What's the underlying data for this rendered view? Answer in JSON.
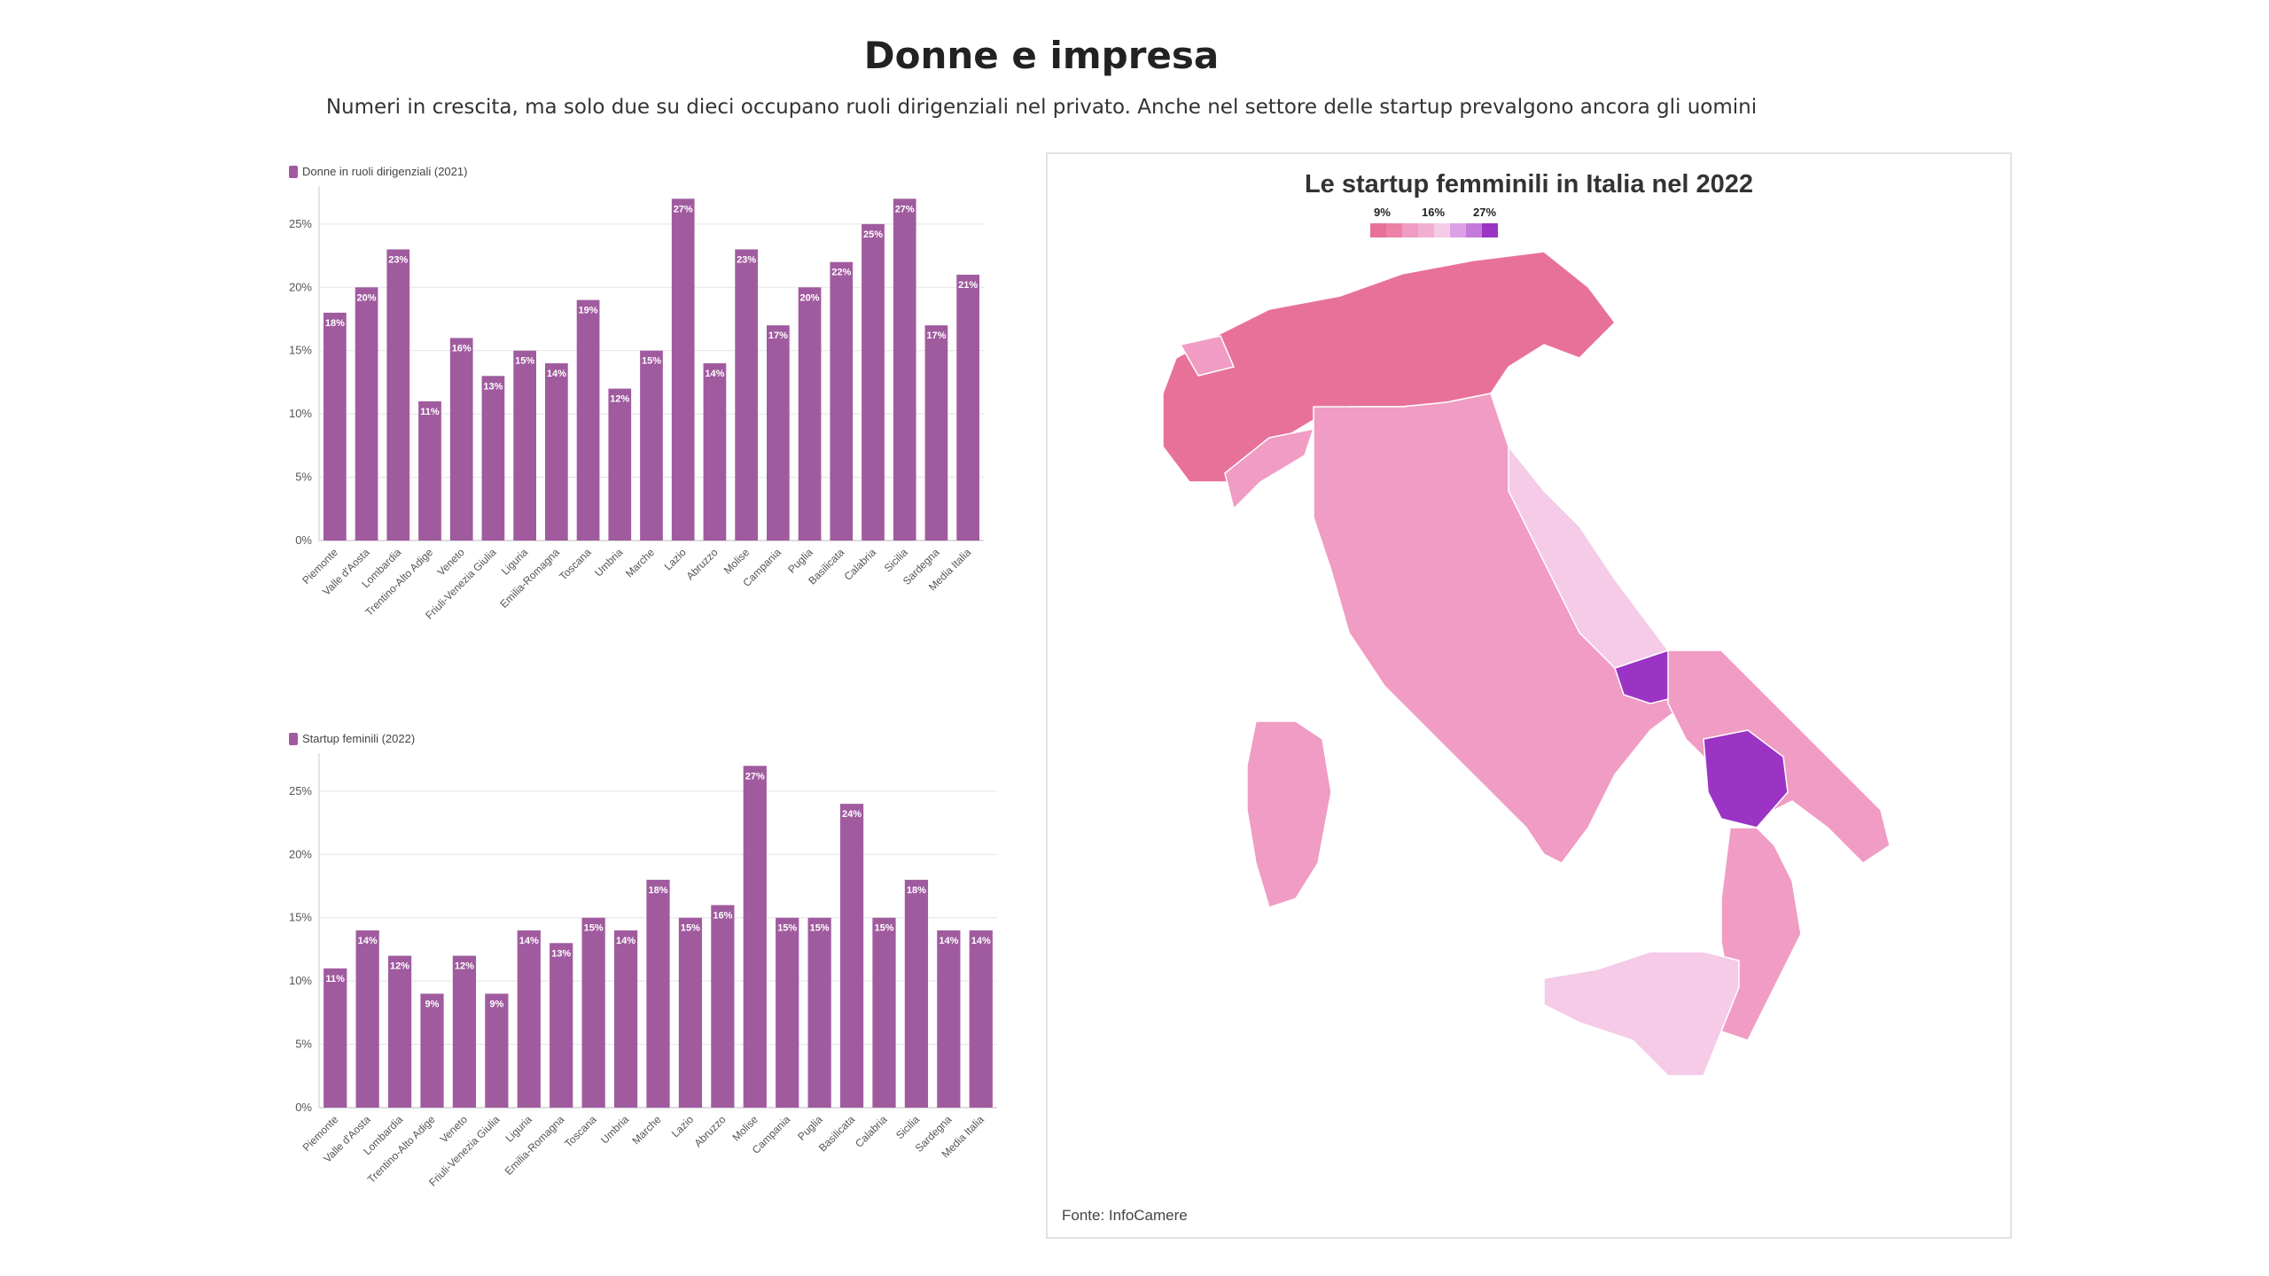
{
  "header": {
    "title": "Donne e impresa",
    "subtitle": "Numeri in crescita, ma solo due su dieci occupano ruoli dirigenziali nel privato. Anche nel settore delle startup prevalgono ancora gli uomini"
  },
  "colors": {
    "bar": "#a05b9f",
    "map_low": "#e8719a",
    "map_mid": "#f09cc4",
    "map_light": "#f5cbe8",
    "map_high": "#9b34c4"
  },
  "chart_data": [
    {
      "type": "bar",
      "legend": "Donne in ruoli dirigenziali (2021)",
      "categories": [
        "Piemonte",
        "Valle d'Aosta",
        "Lombardia",
        "Trentino-Alto Adige",
        "Veneto",
        "Friuli-Venezia Giulia",
        "Liguria",
        "Emilia-Romagna",
        "Toscana",
        "Umbria",
        "Marche",
        "Lazio",
        "Abruzzo",
        "Molise",
        "Campania",
        "Puglia",
        "Basilicata",
        "Calabria",
        "Sicilia",
        "Sardegna",
        "Media Italia"
      ],
      "values": [
        18,
        20,
        23,
        11,
        16,
        13,
        15,
        14,
        19,
        12,
        15,
        27,
        14,
        23,
        17,
        20,
        22,
        25,
        27,
        17,
        21
      ],
      "yticks": [
        "0%",
        "5%",
        "10%",
        "15%",
        "20%",
        "25%"
      ],
      "ylim": [
        0,
        28
      ],
      "grid": true
    },
    {
      "type": "bar",
      "legend": "Startup feminili (2022)",
      "categories": [
        "Piemonte",
        "Valle d'Aosta",
        "Lombardia",
        "Trentino-Alto Adige",
        "Veneto",
        "Friuli-Venezia Giulia",
        "Liguria",
        "Emilia-Romagna",
        "Toscana",
        "Umbria",
        "Marche",
        "Lazio",
        "Abruzzo",
        "Molise",
        "Campania",
        "Puglia",
        "Basilicata",
        "Calabria",
        "Sicilia",
        "Sardegna",
        "Media Italia"
      ],
      "values": [
        11,
        14,
        12,
        9,
        12,
        9,
        14,
        13,
        15,
        14,
        18,
        15,
        16,
        27,
        15,
        15,
        24,
        15,
        18,
        14,
        14
      ],
      "yticks": [
        "0%",
        "5%",
        "10%",
        "15%",
        "20%",
        "25%"
      ],
      "ylim": [
        0,
        28
      ],
      "grid": true
    }
  ],
  "map": {
    "title": "Le startup femminili in Italia nel 2022",
    "scale_labels": [
      "9%",
      "16%",
      "27%"
    ],
    "source": "Fonte: InfoCamere"
  }
}
